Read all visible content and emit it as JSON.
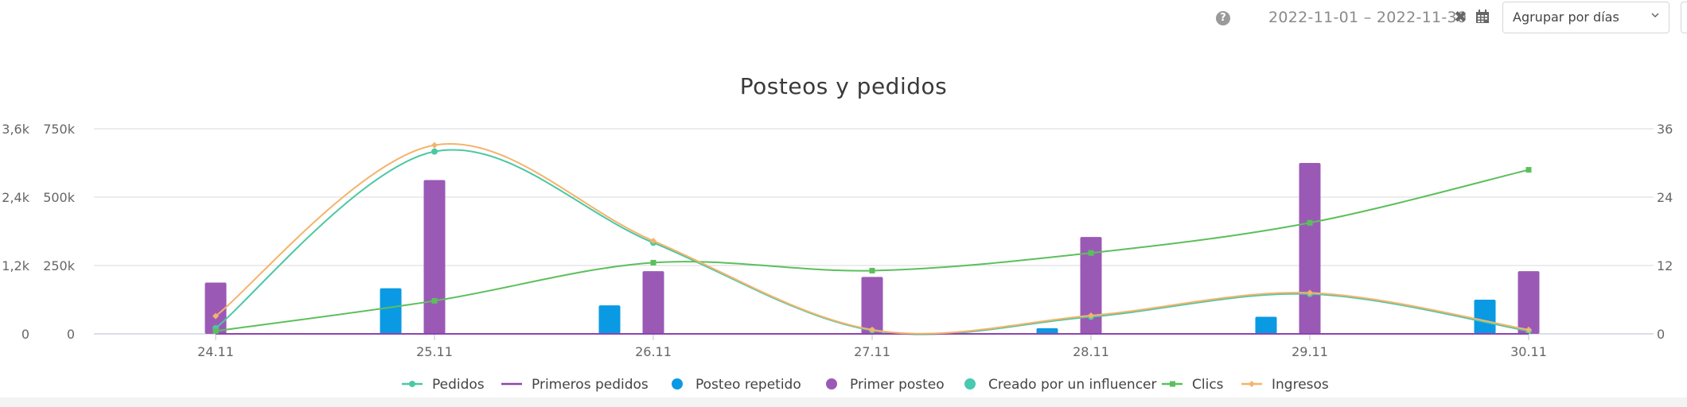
{
  "toolbar": {
    "help_icon": "question-circle-icon",
    "help_glyph": "?",
    "date_range": "2022-11-01 – 2022-11-30",
    "clear_glyph": "✖",
    "calendar_icon": "calendar-icon",
    "group_by_label": "Agrupar por días"
  },
  "colors": {
    "pedidos": "#4cc7a4",
    "primeros_pedidos": "#8e44ad",
    "posteo_repetido": "#0a9ae3",
    "primer_posteo": "#9b59b6",
    "creado_por_influencer": "#48c9b0",
    "clics": "#5cbf5c",
    "ingresos": "#f5b36b",
    "grid": "#e6e6e6"
  },
  "chart_data": {
    "type": "bar",
    "title": "Posteos y pedidos",
    "categories": [
      "24.11",
      "25.11",
      "26.11",
      "27.11",
      "28.11",
      "29.11",
      "30.11"
    ],
    "axes": {
      "y_left_outer": {
        "ticks": [
          "0",
          "1,2k",
          "2,4k",
          "3,6k"
        ],
        "range": [
          0,
          3600
        ]
      },
      "y_left_inner": {
        "ticks": [
          "0",
          "250k",
          "500k",
          "750k"
        ],
        "range": [
          0,
          750000
        ]
      },
      "y_right": {
        "ticks": [
          "0",
          "12",
          "24",
          "36"
        ],
        "range": [
          0,
          36
        ]
      }
    },
    "legend_position": "bottom",
    "grid": true,
    "series": [
      {
        "name": "Pedidos",
        "kind": "spline",
        "axis": "y_right",
        "color_key": "pedidos",
        "values": [
          1,
          32,
          16,
          0.6,
          3,
          7,
          0.5
        ]
      },
      {
        "name": "Primeros pedidos",
        "kind": "line",
        "axis": "y_right",
        "color_key": "primeros_pedidos",
        "values": [
          0,
          0,
          0,
          0,
          0,
          0,
          0
        ]
      },
      {
        "name": "Posteo repetido",
        "kind": "bar",
        "axis": "y_right",
        "color_key": "posteo_repetido",
        "values": [
          0,
          8,
          5,
          0,
          1,
          3,
          6
        ]
      },
      {
        "name": "Primer posteo",
        "kind": "bar",
        "axis": "y_right",
        "color_key": "primer_posteo",
        "values": [
          9,
          27,
          11,
          10,
          17,
          30,
          11
        ]
      },
      {
        "name": "Creado por un influencer",
        "kind": "bar",
        "axis": "y_right",
        "color_key": "creado_por_influencer",
        "values": [
          0,
          0,
          0,
          0,
          0,
          0,
          0
        ]
      },
      {
        "name": "Clics",
        "kind": "spline",
        "axis": "y_left_outer",
        "color_key": "clics",
        "values": [
          50,
          580,
          1250,
          1110,
          1420,
          1950,
          2880
        ]
      },
      {
        "name": "Ingresos",
        "kind": "spline",
        "axis": "y_left_inner",
        "color_key": "ingresos",
        "values": [
          65000,
          690000,
          340000,
          15000,
          67000,
          150000,
          15000
        ]
      }
    ]
  }
}
